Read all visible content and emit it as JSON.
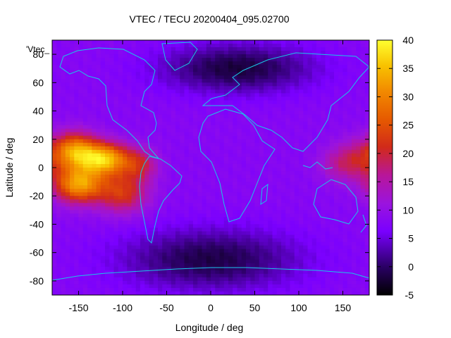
{
  "chart_data": {
    "type": "heatmap",
    "title": "VTEC / TECU 20200404_095.02700",
    "xlabel": "Longitude / deg",
    "ylabel": "Latitude / deg",
    "key_label": "'Vtec_",
    "xlim": [
      -180,
      180
    ],
    "ylim": [
      -90,
      90
    ],
    "xticks": [
      -150,
      -100,
      -50,
      0,
      50,
      100,
      150
    ],
    "yticks": [
      -80,
      -60,
      -40,
      -20,
      0,
      20,
      40,
      60,
      80
    ],
    "colorbar": {
      "min": -5,
      "max": 40,
      "ticks": [
        -5,
        0,
        5,
        10,
        15,
        20,
        25,
        30,
        35,
        40
      ]
    },
    "background_level": 8,
    "features": [
      {
        "lon": -155,
        "lat": 12,
        "peak": 30,
        "sx": 18,
        "sy": 9
      },
      {
        "lon": -120,
        "lat": 6,
        "peak": 34,
        "sx": 20,
        "sy": 8
      },
      {
        "lon": -150,
        "lat": -12,
        "peak": 32,
        "sx": 20,
        "sy": 9
      },
      {
        "lon": -100,
        "lat": -18,
        "peak": 22,
        "sx": 20,
        "sy": 10
      },
      {
        "lon": -80,
        "lat": 2,
        "peak": 18,
        "sx": 14,
        "sy": 8
      },
      {
        "lon": 165,
        "lat": 5,
        "peak": 18,
        "sx": 18,
        "sy": 10
      },
      {
        "lon": 140,
        "lat": 2,
        "peak": 12,
        "sx": 15,
        "sy": 8
      },
      {
        "lon": 30,
        "lat": 70,
        "peak": -2,
        "sx": 60,
        "sy": 12
      },
      {
        "lon": 0,
        "lat": -65,
        "peak": -1.5,
        "sx": 70,
        "sy": 15
      }
    ]
  }
}
